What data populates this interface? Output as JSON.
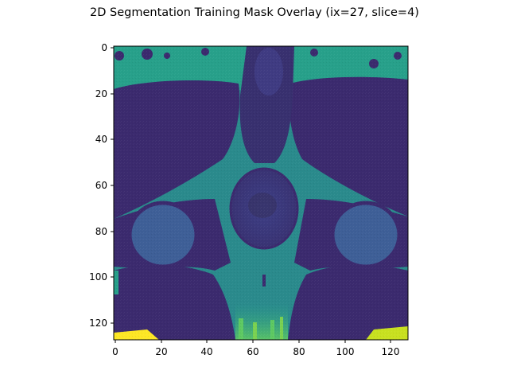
{
  "figure": {
    "title": "2D Segmentation Training Mask Overlay (ix=27, slice=4)"
  },
  "image": {
    "description_kind": "axial MRI slice rendered with viridis colormap",
    "colormap": "viridis",
    "resolution": [
      128,
      128
    ]
  },
  "axes": {
    "x_ticks": [
      "0",
      "20",
      "40",
      "60",
      "80",
      "100",
      "120"
    ],
    "y_ticks": [
      "0",
      "20",
      "40",
      "60",
      "80",
      "100",
      "120"
    ],
    "x_range": [
      0,
      128
    ],
    "y_range": [
      0,
      128
    ],
    "y_inverted": true
  },
  "colors": {
    "viridis_dark": "#3b2a6e",
    "viridis_mid": "#2e7d8e",
    "viridis_teal": "#27a08a",
    "viridis_green": "#5ec962",
    "viridis_yellow": "#fde725",
    "viridis_deep": "#440154"
  }
}
